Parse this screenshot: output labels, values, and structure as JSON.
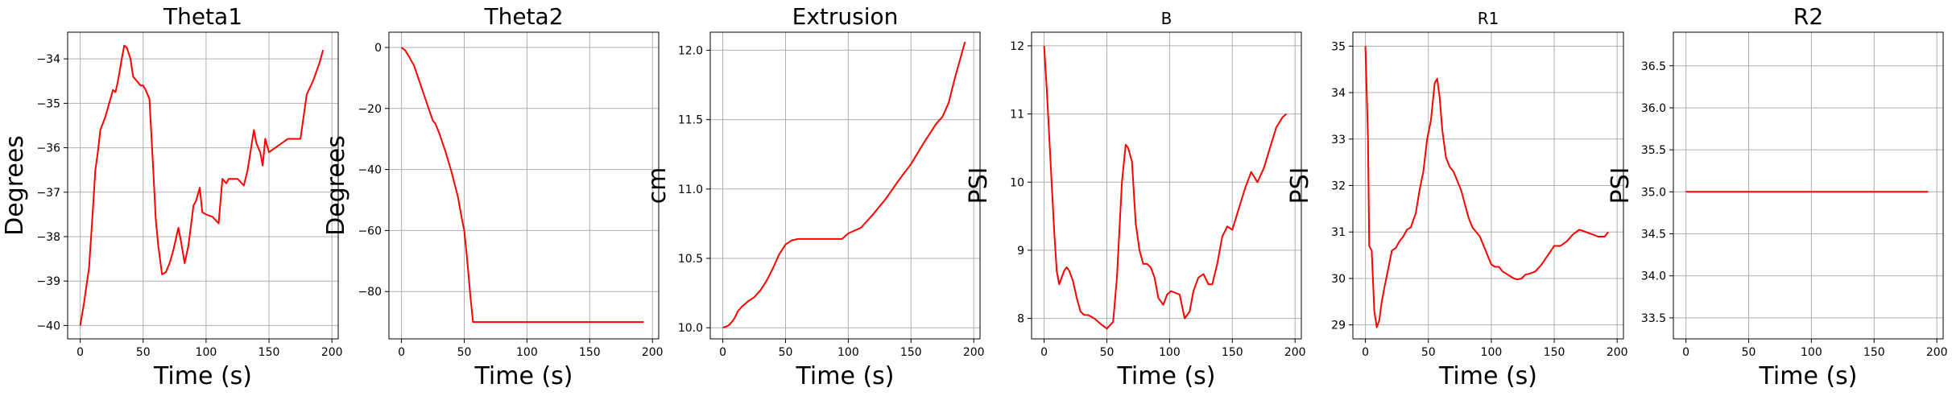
{
  "chart_data": [
    {
      "type": "line",
      "title": "Theta1",
      "xlabel": "Time (s)",
      "ylabel": "Degrees",
      "xlim": [
        -10,
        205
      ],
      "ylim": [
        -40.3,
        -33.4
      ],
      "xticks": [
        0,
        50,
        100,
        150,
        200
      ],
      "yticks": [
        -40,
        -39,
        -38,
        -37,
        -36,
        -35,
        -34
      ],
      "xtick_labels": [
        "0",
        "50",
        "100",
        "150",
        "200"
      ],
      "ytick_labels": [
        "−40",
        "−39",
        "−38",
        "−37",
        "−36",
        "−35",
        "−34"
      ],
      "grid": true,
      "line_color": "#ff0000",
      "x": [
        0,
        3,
        5,
        7,
        10,
        12,
        14,
        16,
        20,
        23,
        26,
        28,
        30,
        33,
        35,
        37,
        40,
        42,
        45,
        48,
        50,
        52,
        55,
        58,
        60,
        62,
        65,
        68,
        71,
        74,
        78,
        80,
        83,
        86,
        90,
        92,
        95,
        97,
        100,
        105,
        110,
        113,
        116,
        118,
        120,
        125,
        130,
        133,
        138,
        140,
        143,
        145,
        147,
        150,
        155,
        160,
        165,
        170,
        175,
        180,
        185,
        190,
        193
      ],
      "y": [
        -40.0,
        -39.5,
        -39.1,
        -38.7,
        -37.4,
        -36.5,
        -36.1,
        -35.6,
        -35.3,
        -35.0,
        -34.7,
        -34.75,
        -34.5,
        -34.0,
        -33.7,
        -33.75,
        -34.0,
        -34.4,
        -34.5,
        -34.6,
        -34.6,
        -34.7,
        -34.9,
        -36.5,
        -37.6,
        -38.2,
        -38.85,
        -38.8,
        -38.6,
        -38.3,
        -37.8,
        -38.1,
        -38.6,
        -38.2,
        -37.3,
        -37.2,
        -36.9,
        -37.45,
        -37.5,
        -37.55,
        -37.7,
        -36.7,
        -36.8,
        -36.7,
        -36.7,
        -36.7,
        -36.85,
        -36.5,
        -35.6,
        -35.9,
        -36.1,
        -36.4,
        -35.8,
        -36.1,
        -36.0,
        -35.9,
        -35.8,
        -35.8,
        -35.8,
        -34.8,
        -34.5,
        -34.1,
        -33.8
      ]
    },
    {
      "type": "line",
      "title": "Theta2",
      "xlabel": "Time (s)",
      "ylabel": "Degrees",
      "xlim": [
        -10,
        205
      ],
      "ylim": [
        -95.5,
        5
      ],
      "xticks": [
        0,
        50,
        100,
        150,
        200
      ],
      "yticks": [
        -80,
        -60,
        -40,
        -20,
        0
      ],
      "xtick_labels": [
        "0",
        "50",
        "100",
        "150",
        "200"
      ],
      "ytick_labels": [
        "−80",
        "−60",
        "−40",
        "−20",
        "0"
      ],
      "grid": true,
      "line_color": "#ff0000",
      "x": [
        0,
        3,
        6,
        10,
        15,
        20,
        25,
        27,
        30,
        35,
        40,
        45,
        48,
        50,
        52,
        55,
        57,
        100,
        150,
        193
      ],
      "y": [
        0,
        -1,
        -3,
        -6,
        -12,
        -18,
        -24,
        -25,
        -28,
        -34,
        -41,
        -49,
        -56,
        -60,
        -68,
        -82,
        -90,
        -90,
        -90,
        -90
      ]
    },
    {
      "type": "line",
      "title": "Extrusion",
      "xlabel": "Time (s)",
      "ylabel": "cm",
      "xlim": [
        -10,
        205
      ],
      "ylim": [
        9.92,
        12.13
      ],
      "xticks": [
        0,
        50,
        100,
        150,
        200
      ],
      "yticks": [
        10.0,
        10.5,
        11.0,
        11.5,
        12.0
      ],
      "xtick_labels": [
        "0",
        "50",
        "100",
        "150",
        "200"
      ],
      "ytick_labels": [
        "10.0",
        "10.5",
        "11.0",
        "11.5",
        "12.0"
      ],
      "grid": true,
      "line_color": "#ff0000",
      "x": [
        0,
        3,
        5,
        8,
        10,
        12,
        15,
        20,
        25,
        30,
        35,
        40,
        45,
        50,
        55,
        60,
        70,
        80,
        90,
        95,
        100,
        105,
        110,
        115,
        120,
        130,
        140,
        150,
        160,
        170,
        175,
        180,
        185,
        193
      ],
      "y": [
        10.0,
        10.01,
        10.02,
        10.05,
        10.08,
        10.12,
        10.15,
        10.19,
        10.22,
        10.27,
        10.34,
        10.43,
        10.53,
        10.6,
        10.63,
        10.64,
        10.64,
        10.64,
        10.64,
        10.64,
        10.68,
        10.7,
        10.72,
        10.77,
        10.82,
        10.93,
        11.06,
        11.18,
        11.33,
        11.47,
        11.52,
        11.62,
        11.8,
        12.06
      ]
    },
    {
      "type": "line",
      "title": "B",
      "xlabel": "Time (s)",
      "ylabel": "PSI",
      "xlim": [
        -10,
        205
      ],
      "ylim": [
        7.7,
        12.2
      ],
      "xticks": [
        0,
        50,
        100,
        150,
        200
      ],
      "yticks": [
        8,
        9,
        10,
        11,
        12
      ],
      "xtick_labels": [
        "0",
        "50",
        "100",
        "150",
        "200"
      ],
      "ytick_labels": [
        "8",
        "9",
        "10",
        "11",
        "12"
      ],
      "grid": true,
      "line_color": "#ff0000",
      "x": [
        0,
        2,
        4,
        6,
        8,
        10,
        12,
        14,
        16,
        18,
        20,
        23,
        26,
        29,
        32,
        35,
        40,
        45,
        50,
        55,
        58,
        62,
        65,
        67,
        70,
        73,
        76,
        79,
        82,
        85,
        88,
        91,
        95,
        98,
        101,
        104,
        108,
        112,
        116,
        119,
        123,
        127,
        131,
        134,
        138,
        142,
        146,
        150,
        155,
        160,
        165,
        170,
        175,
        180,
        185,
        190,
        193
      ],
      "y": [
        12.0,
        11.4,
        10.7,
        10.0,
        9.3,
        8.7,
        8.5,
        8.6,
        8.7,
        8.75,
        8.7,
        8.55,
        8.3,
        8.1,
        8.05,
        8.05,
        8.0,
        7.92,
        7.85,
        7.95,
        8.6,
        10.0,
        10.55,
        10.5,
        10.3,
        9.4,
        9.0,
        8.8,
        8.8,
        8.75,
        8.6,
        8.3,
        8.2,
        8.35,
        8.4,
        8.38,
        8.35,
        8.0,
        8.1,
        8.4,
        8.6,
        8.65,
        8.5,
        8.5,
        8.8,
        9.2,
        9.35,
        9.3,
        9.6,
        9.9,
        10.15,
        10.0,
        10.2,
        10.5,
        10.8,
        10.95,
        11.0
      ]
    },
    {
      "type": "line",
      "title": "R1",
      "xlabel": "Time (s)",
      "ylabel": "PSI",
      "xlim": [
        -10,
        205
      ],
      "ylim": [
        28.7,
        35.3
      ],
      "xticks": [
        0,
        50,
        100,
        150,
        200
      ],
      "yticks": [
        29,
        30,
        31,
        32,
        33,
        34,
        35
      ],
      "xtick_labels": [
        "0",
        "50",
        "100",
        "150",
        "200"
      ],
      "ytick_labels": [
        "29",
        "30",
        "31",
        "32",
        "33",
        "34",
        "35"
      ],
      "grid": true,
      "line_color": "#ff0000",
      "x": [
        0,
        2,
        3,
        5,
        7,
        9,
        11,
        13,
        15,
        18,
        21,
        24,
        27,
        30,
        33,
        36,
        40,
        43,
        46,
        49,
        52,
        55,
        57,
        59,
        61,
        64,
        67,
        70,
        73,
        76,
        79,
        82,
        85,
        88,
        91,
        94,
        97,
        100,
        103,
        106,
        109,
        112,
        115,
        118,
        121,
        124,
        127,
        130,
        135,
        140,
        145,
        150,
        155,
        160,
        165,
        170,
        175,
        180,
        185,
        190,
        193
      ],
      "y": [
        35.0,
        33.0,
        30.7,
        30.6,
        29.3,
        28.95,
        29.1,
        29.5,
        29.8,
        30.2,
        30.6,
        30.65,
        30.8,
        30.9,
        31.05,
        31.1,
        31.4,
        31.9,
        32.3,
        33.0,
        33.4,
        34.2,
        34.3,
        33.9,
        33.2,
        32.6,
        32.4,
        32.3,
        32.1,
        31.9,
        31.6,
        31.3,
        31.1,
        31.0,
        30.9,
        30.7,
        30.5,
        30.3,
        30.25,
        30.25,
        30.15,
        30.1,
        30.05,
        30.0,
        29.98,
        30.0,
        30.08,
        30.1,
        30.15,
        30.3,
        30.5,
        30.7,
        30.7,
        30.8,
        30.95,
        31.05,
        31.0,
        30.95,
        30.9,
        30.9,
        31.0
      ]
    },
    {
      "type": "line",
      "title": "R2",
      "xlabel": "Time (s)",
      "ylabel": "PSI",
      "xlim": [
        -10,
        205
      ],
      "ylim": [
        33.25,
        36.9
      ],
      "xticks": [
        0,
        50,
        100,
        150,
        200
      ],
      "yticks": [
        33.5,
        34.0,
        34.5,
        35.0,
        35.5,
        36.0,
        36.5
      ],
      "xtick_labels": [
        "0",
        "50",
        "100",
        "150",
        "200"
      ],
      "ytick_labels": [
        "33.5",
        "34.0",
        "34.5",
        "35.0",
        "35.5",
        "36.0",
        "36.5"
      ],
      "grid": true,
      "line_color": "#ff0000",
      "x": [
        0,
        193
      ],
      "y": [
        35.0,
        35.0
      ]
    }
  ]
}
